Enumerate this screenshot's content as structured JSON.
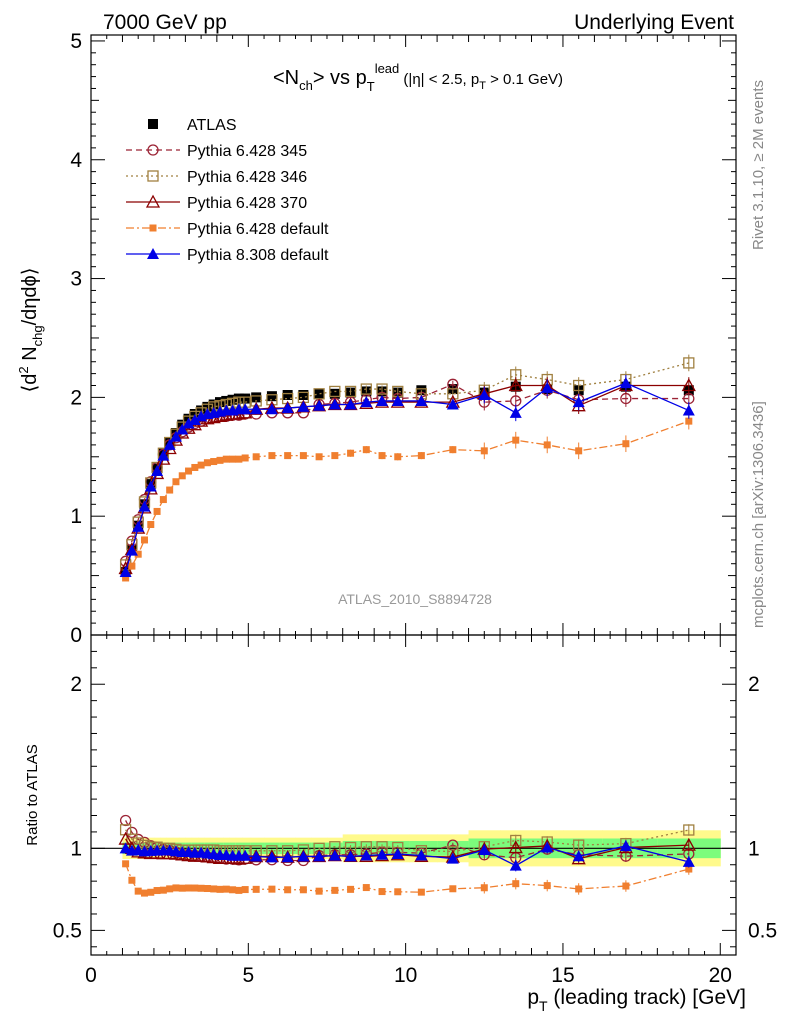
{
  "header": {
    "energy_label": "7000 GeV pp",
    "process_label": "Underlying Event"
  },
  "side_labels": {
    "rivet": "Rivet 3.1.10, ≥ 2M events",
    "source": "mcplots.cern.ch [arXiv:1306.3436]"
  },
  "analysis_id": "ATLAS_2010_S8894728",
  "chart_data": [
    {
      "type": "line",
      "panel": "main",
      "title": "<N_ch> vs p_T^lead (|η| < 2.5, p_T > 0.1 GeV)",
      "ylabel": "⟨d² N_chg/dηdϕ⟩",
      "xlabel": "p_T (leading track) [GeV]",
      "xlim": [
        0,
        20.5
      ],
      "ylim": [
        0,
        5.05
      ],
      "x_ticks": [
        0,
        5,
        10,
        15,
        20
      ],
      "y_ticks": [
        0,
        1,
        2,
        3,
        4,
        5
      ],
      "legend_position": "top-left",
      "series": [
        {
          "name": "ATLAS",
          "color": "#000000",
          "marker": "filled-square",
          "x": [
            1.1,
            1.3,
            1.5,
            1.7,
            1.9,
            2.1,
            2.3,
            2.5,
            2.7,
            2.9,
            3.1,
            3.3,
            3.5,
            3.7,
            3.9,
            4.1,
            4.3,
            4.5,
            4.7,
            4.9,
            5.25,
            5.75,
            6.25,
            6.75,
            7.25,
            7.75,
            8.25,
            8.75,
            9.25,
            9.75,
            10.5,
            11.5,
            12.5,
            13.5,
            14.5,
            15.5,
            17,
            19
          ],
          "y": [
            0.53,
            0.72,
            0.92,
            1.1,
            1.27,
            1.4,
            1.53,
            1.62,
            1.7,
            1.77,
            1.82,
            1.86,
            1.89,
            1.92,
            1.94,
            1.96,
            1.97,
            1.98,
            1.99,
            1.99,
            2.0,
            2.01,
            2.02,
            2.02,
            2.03,
            2.03,
            2.04,
            2.05,
            2.05,
            2.04,
            2.06,
            2.07,
            2.04,
            2.09,
            2.07,
            2.06,
            2.09,
            2.06
          ]
        },
        {
          "name": "Pythia 6.428 345",
          "color": "#9b2335",
          "marker": "open-circle",
          "line": "dashed",
          "x": [
            1.1,
            1.3,
            1.5,
            1.7,
            1.9,
            2.1,
            2.3,
            2.5,
            2.7,
            2.9,
            3.1,
            3.3,
            3.5,
            3.7,
            3.9,
            4.1,
            4.3,
            4.5,
            4.7,
            4.9,
            5.25,
            5.75,
            6.25,
            6.75,
            7.25,
            7.75,
            8.25,
            8.75,
            9.25,
            9.75,
            10.5,
            11.5,
            12.5,
            13.5,
            14.5,
            15.5,
            17,
            19
          ],
          "y": [
            0.62,
            0.79,
            0.97,
            1.14,
            1.29,
            1.41,
            1.52,
            1.6,
            1.66,
            1.71,
            1.75,
            1.78,
            1.8,
            1.82,
            1.83,
            1.84,
            1.84,
            1.85,
            1.85,
            1.86,
            1.86,
            1.87,
            1.87,
            1.87,
            1.94,
            1.95,
            1.96,
            1.98,
            2.0,
            1.99,
            2.0,
            2.11,
            1.96,
            1.97,
            2.06,
            1.98,
            1.99,
            1.99
          ]
        },
        {
          "name": "Pythia 6.428 346",
          "color": "#a08040",
          "marker": "open-square",
          "line": "dotted",
          "x": [
            1.1,
            1.3,
            1.5,
            1.7,
            1.9,
            2.1,
            2.3,
            2.5,
            2.7,
            2.9,
            3.1,
            3.3,
            3.5,
            3.7,
            3.9,
            4.1,
            4.3,
            4.5,
            4.7,
            4.9,
            5.25,
            5.75,
            6.25,
            6.75,
            7.25,
            7.75,
            8.25,
            8.75,
            9.25,
            9.75,
            10.5,
            11.5,
            12.5,
            13.5,
            14.5,
            15.5,
            17,
            19
          ],
          "y": [
            0.59,
            0.76,
            0.95,
            1.12,
            1.28,
            1.41,
            1.53,
            1.62,
            1.69,
            1.75,
            1.8,
            1.84,
            1.87,
            1.9,
            1.92,
            1.93,
            1.94,
            1.95,
            1.96,
            1.96,
            1.97,
            1.98,
            1.99,
            2.0,
            2.03,
            2.05,
            2.05,
            2.07,
            2.07,
            2.05,
            2.03,
            2.03,
            2.06,
            2.19,
            2.15,
            2.1,
            2.15,
            2.29
          ]
        },
        {
          "name": "Pythia 6.428 370",
          "color": "#8b0000",
          "marker": "open-triangle",
          "line": "solid",
          "x": [
            1.1,
            1.3,
            1.5,
            1.7,
            1.9,
            2.1,
            2.3,
            2.5,
            2.7,
            2.9,
            3.1,
            3.3,
            3.5,
            3.7,
            3.9,
            4.1,
            4.3,
            4.5,
            4.7,
            4.9,
            5.25,
            5.75,
            6.25,
            6.75,
            7.25,
            7.75,
            8.25,
            8.75,
            9.25,
            9.75,
            10.5,
            11.5,
            12.5,
            13.5,
            14.5,
            15.5,
            17,
            19
          ],
          "y": [
            0.56,
            0.72,
            0.9,
            1.07,
            1.23,
            1.36,
            1.48,
            1.57,
            1.64,
            1.7,
            1.74,
            1.77,
            1.8,
            1.82,
            1.83,
            1.84,
            1.85,
            1.86,
            1.86,
            1.87,
            1.9,
            1.91,
            1.91,
            1.92,
            1.93,
            1.94,
            1.94,
            1.95,
            1.96,
            1.96,
            1.96,
            1.96,
            2.03,
            2.1,
            2.1,
            1.93,
            2.1,
            2.1
          ]
        },
        {
          "name": "Pythia 6.428 default",
          "color": "#f07f2f",
          "marker": "filled-square-small",
          "line": "dashdot",
          "x": [
            1.1,
            1.3,
            1.5,
            1.7,
            1.9,
            2.1,
            2.3,
            2.5,
            2.7,
            2.9,
            3.1,
            3.3,
            3.5,
            3.7,
            3.9,
            4.1,
            4.3,
            4.5,
            4.7,
            4.9,
            5.25,
            5.75,
            6.25,
            6.75,
            7.25,
            7.75,
            8.25,
            8.75,
            9.25,
            9.75,
            10.5,
            11.5,
            12.5,
            13.5,
            14.5,
            15.5,
            17,
            19
          ],
          "y": [
            0.48,
            0.58,
            0.68,
            0.8,
            0.93,
            1.04,
            1.14,
            1.22,
            1.29,
            1.34,
            1.38,
            1.41,
            1.43,
            1.45,
            1.46,
            1.47,
            1.48,
            1.48,
            1.48,
            1.49,
            1.5,
            1.51,
            1.51,
            1.51,
            1.5,
            1.51,
            1.53,
            1.56,
            1.51,
            1.5,
            1.51,
            1.56,
            1.55,
            1.64,
            1.6,
            1.55,
            1.61,
            1.8
          ]
        },
        {
          "name": "Pythia 8.308 default",
          "color": "#0000e6",
          "marker": "filled-triangle",
          "line": "solid",
          "x": [
            1.1,
            1.3,
            1.5,
            1.7,
            1.9,
            2.1,
            2.3,
            2.5,
            2.7,
            2.9,
            3.1,
            3.3,
            3.5,
            3.7,
            3.9,
            4.1,
            4.3,
            4.5,
            4.7,
            4.9,
            5.25,
            5.75,
            6.25,
            6.75,
            7.25,
            7.75,
            8.25,
            8.75,
            9.25,
            9.75,
            10.5,
            11.5,
            12.5,
            13.5,
            14.5,
            15.5,
            17,
            19
          ],
          "y": [
            0.53,
            0.71,
            0.91,
            1.08,
            1.25,
            1.38,
            1.51,
            1.6,
            1.67,
            1.73,
            1.78,
            1.81,
            1.84,
            1.86,
            1.87,
            1.88,
            1.89,
            1.89,
            1.9,
            1.9,
            1.9,
            1.9,
            1.91,
            1.92,
            1.93,
            1.94,
            1.94,
            1.96,
            1.97,
            1.97,
            1.97,
            1.94,
            2.02,
            1.87,
            2.08,
            1.96,
            2.12,
            1.89
          ]
        }
      ]
    },
    {
      "type": "line",
      "panel": "ratio",
      "ylabel": "Ratio to ATLAS",
      "xlabel": "p_T (leading track) [GeV]",
      "xlim": [
        0,
        20.5
      ],
      "ylim": [
        0.35,
        2.3
      ],
      "x_ticks": [
        0,
        5,
        10,
        15,
        20
      ],
      "y_ticks": [
        0.5,
        1,
        2
      ],
      "ratio_bands": [
        {
          "name": "stat",
          "color": "#7cfc7c"
        },
        {
          "name": "syst",
          "color": "#fffa8c"
        }
      ]
    }
  ]
}
